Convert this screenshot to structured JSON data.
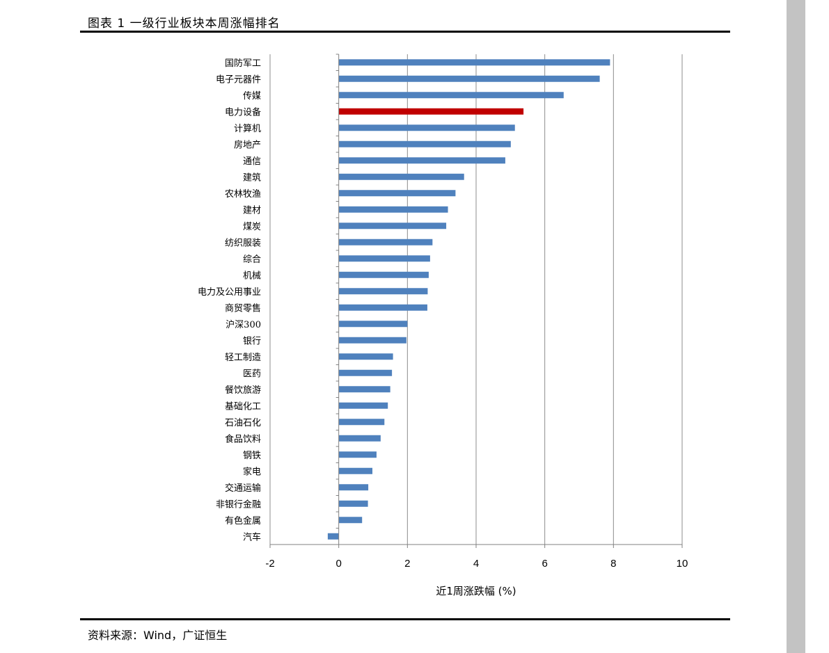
{
  "figure": {
    "title": "图表 1 一级行业板块本周涨幅排名",
    "source": "资料来源：Wind，广证恒生"
  },
  "chart_data": {
    "type": "bar",
    "orientation": "horizontal",
    "categories": [
      "国防军工",
      "电子元器件",
      "传媒",
      "电力设备",
      "计算机",
      "房地产",
      "通信",
      "建筑",
      "农林牧渔",
      "建材",
      "煤炭",
      "纺织服装",
      "综合",
      "机械",
      "电力及公用事业",
      "商贸零售",
      "沪深300",
      "银行",
      "轻工制造",
      "医药",
      "餐饮旅游",
      "基础化工",
      "石油石化",
      "食品饮料",
      "钢铁",
      "家电",
      "交通运输",
      "非银行金融",
      "有色金属",
      "汽车"
    ],
    "values": [
      7.9,
      7.6,
      6.55,
      5.38,
      5.13,
      5.01,
      4.85,
      3.65,
      3.4,
      3.18,
      3.13,
      2.73,
      2.66,
      2.62,
      2.59,
      2.58,
      2.0,
      1.97,
      1.58,
      1.55,
      1.5,
      1.43,
      1.33,
      1.22,
      1.1,
      0.98,
      0.86,
      0.85,
      0.68,
      -0.32
    ],
    "highlight": "电力设备",
    "xlabel": "近1周涨跌幅 (%)",
    "xlim": [
      -2,
      10
    ],
    "xticks": [
      -2,
      0,
      2,
      4,
      6,
      8,
      10
    ],
    "grid": true,
    "colors": {
      "bar": "#4f81bd",
      "highlight": "#c00000",
      "grid": "#8c8c8c",
      "axis": "#808080"
    }
  }
}
